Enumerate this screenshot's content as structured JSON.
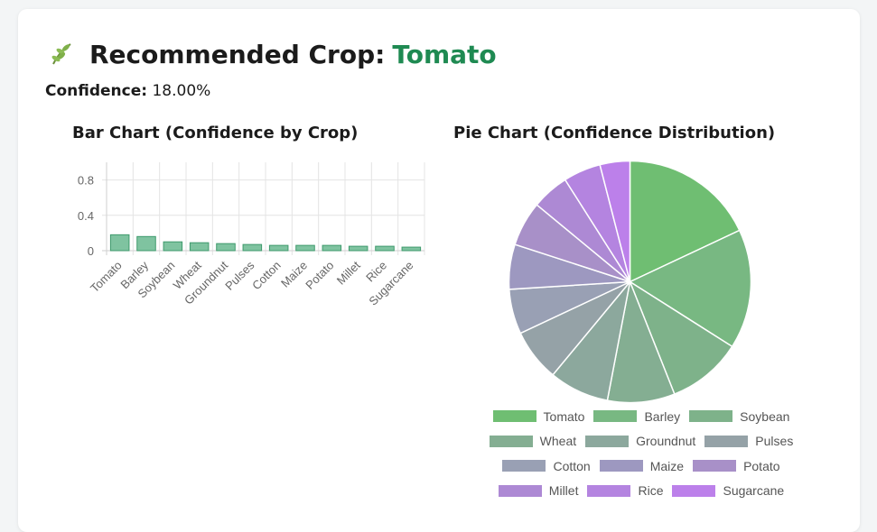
{
  "header": {
    "title_prefix": "Recommended Crop:",
    "crop": "Tomato",
    "confidence_label": "Confidence:",
    "confidence_value": "18.00%"
  },
  "colors": {
    "accent": "#1f8a52",
    "bar_fill": "rgba(72,170,120,0.7)",
    "bar_stroke": "#3f9a6d"
  },
  "chart_data": [
    {
      "type": "bar",
      "title": "Bar Chart (Confidence by Crop)",
      "categories": [
        "Tomato",
        "Barley",
        "Soybean",
        "Wheat",
        "Groundnut",
        "Pulses",
        "Cotton",
        "Maize",
        "Potato",
        "Millet",
        "Rice",
        "Sugarcane"
      ],
      "values": [
        0.18,
        0.16,
        0.1,
        0.09,
        0.08,
        0.07,
        0.06,
        0.06,
        0.06,
        0.05,
        0.05,
        0.04
      ],
      "ylim": [
        0,
        1
      ],
      "yticks": [
        "0",
        "0.4",
        "0.8"
      ],
      "grid": true
    },
    {
      "type": "pie",
      "title": "Pie Chart (Confidence Distribution)",
      "labels": [
        "Tomato",
        "Barley",
        "Soybean",
        "Wheat",
        "Groundnut",
        "Pulses",
        "Cotton",
        "Maize",
        "Potato",
        "Millet",
        "Rice",
        "Sugarcane"
      ],
      "values": [
        0.18,
        0.16,
        0.1,
        0.09,
        0.08,
        0.07,
        0.06,
        0.06,
        0.06,
        0.05,
        0.05,
        0.04
      ],
      "colors": [
        "#6fbe72",
        "#78b882",
        "#7eb28a",
        "#84ae92",
        "#8ca89d",
        "#95a2a7",
        "#99a0b4",
        "#9d98c0",
        "#a890c8",
        "#ad89d4",
        "#b484e0",
        "#bc80ea"
      ],
      "legend_position": "bottom"
    }
  ]
}
